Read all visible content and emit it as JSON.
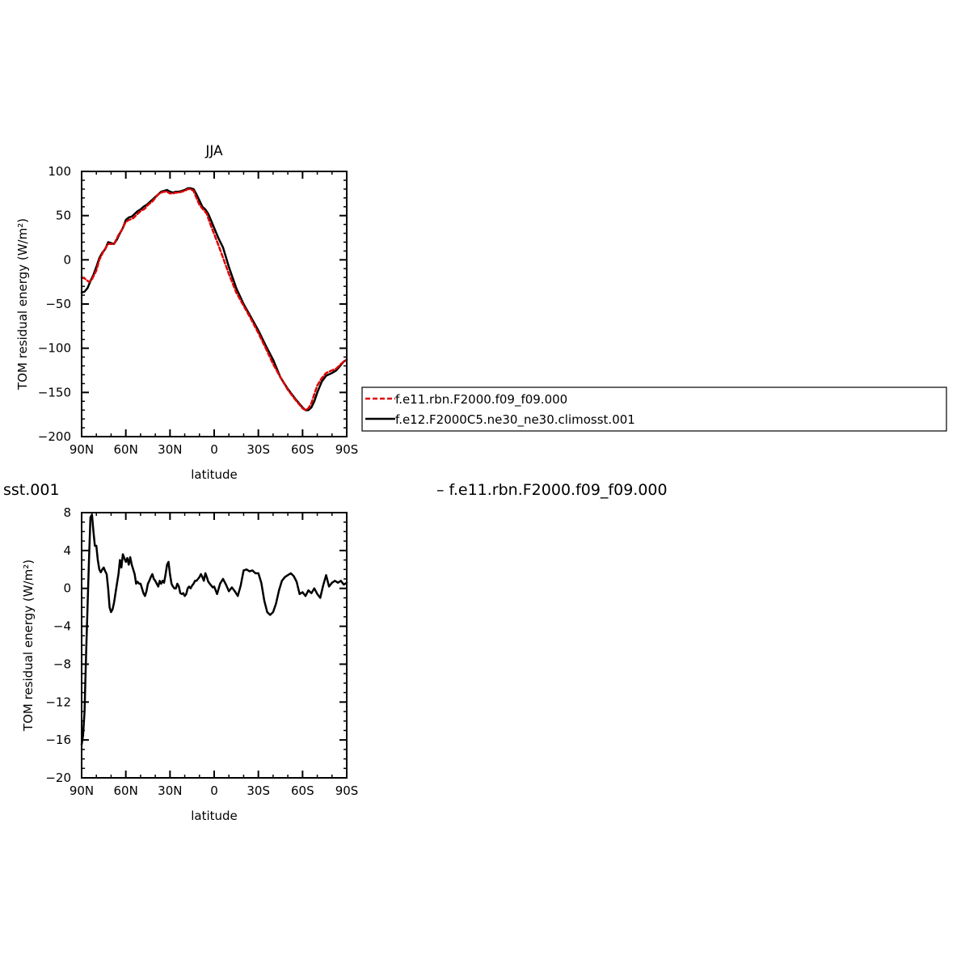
{
  "chart_data": [
    {
      "type": "line",
      "title": "JJA",
      "xlabel": "latitude",
      "ylabel": "TOM residual energy (W/m²)",
      "xlim": [
        90,
        -90
      ],
      "ylim": [
        -200,
        100
      ],
      "x_ticks": [
        90,
        60,
        30,
        0,
        -30,
        -60,
        -90
      ],
      "x_tick_labels": [
        "90N",
        "60N",
        "30N",
        "0",
        "30S",
        "60S",
        "90S"
      ],
      "y_ticks": [
        100,
        50,
        0,
        -50,
        -100,
        -150,
        -200
      ],
      "y_tick_labels": [
        "100",
        "50",
        "0",
        "−50",
        "−100",
        "−150",
        "−200"
      ],
      "legend": {
        "placement": "right",
        "entries": [
          "f.e11.rbn.F2000.f09_f09.000",
          "f.e12.F2000C5.ne30_ne30.climosst.001"
        ]
      },
      "series": [
        {
          "name": "f.e11.rbn.F2000.f09_f09.000",
          "color": "#e00000",
          "dash": true,
          "x": [
            90,
            88,
            85,
            83,
            80,
            78,
            75,
            72,
            70,
            68,
            65,
            63,
            60,
            58,
            55,
            52,
            50,
            47,
            45,
            42,
            40,
            38,
            36,
            34,
            32,
            30,
            28,
            26,
            24,
            22,
            20,
            18,
            16,
            14,
            12,
            10,
            8,
            5,
            3,
            0,
            -3,
            -5,
            -10,
            -15,
            -20,
            -25,
            -30,
            -35,
            -40,
            -45,
            -50,
            -55,
            -60,
            -62,
            -64,
            -66,
            -68,
            -70,
            -73,
            -76,
            -80,
            -83,
            -86,
            -88,
            -90
          ],
          "y": [
            -20,
            -21,
            -25,
            -22,
            -12,
            0,
            10,
            18,
            18,
            18,
            28,
            33,
            43,
            45,
            47,
            52,
            55,
            58,
            62,
            66,
            70,
            74,
            76,
            77,
            77,
            75,
            75,
            76,
            76,
            77,
            78,
            80,
            80,
            78,
            70,
            62,
            58,
            52,
            42,
            29,
            16,
            7,
            -16,
            -37,
            -52,
            -67,
            -83,
            -100,
            -118,
            -133,
            -147,
            -158,
            -168,
            -170,
            -168,
            -162,
            -152,
            -142,
            -134,
            -128,
            -125,
            -123,
            -118,
            -115,
            -113
          ]
        },
        {
          "name": "f.e12.F2000C5.ne30_ne30.climosst.001",
          "color": "#000000",
          "dash": false,
          "x": [
            90,
            88,
            86,
            84,
            82,
            80,
            78,
            76,
            74,
            72,
            70,
            68,
            66,
            64,
            62,
            60,
            58,
            56,
            54,
            52,
            50,
            48,
            46,
            44,
            42,
            40,
            38,
            36,
            34,
            32,
            30,
            28,
            26,
            24,
            22,
            20,
            18,
            16,
            14,
            12,
            10,
            8,
            6,
            4,
            2,
            0,
            -3,
            -6,
            -10,
            -15,
            -20,
            -25,
            -30,
            -35,
            -40,
            -45,
            -50,
            -55,
            -60,
            -62,
            -64,
            -66,
            -68,
            -70,
            -73,
            -76,
            -80,
            -83,
            -86,
            -88,
            -90
          ],
          "y": [
            -37,
            -36,
            -32,
            -24,
            -17,
            -8,
            2,
            8,
            12,
            20,
            19,
            18,
            23,
            30,
            36,
            45,
            48,
            49,
            52,
            55,
            57,
            60,
            62,
            65,
            68,
            71,
            74,
            77,
            78,
            79,
            77,
            76,
            77,
            77,
            78,
            79,
            81,
            81,
            80,
            74,
            67,
            60,
            57,
            52,
            44,
            36,
            24,
            14,
            -8,
            -32,
            -50,
            -65,
            -80,
            -97,
            -113,
            -133,
            -146,
            -157,
            -167,
            -170,
            -170,
            -167,
            -160,
            -150,
            -138,
            -131,
            -128,
            -125,
            -119,
            -115,
            -113
          ]
        }
      ]
    },
    {
      "type": "line",
      "title": "",
      "xlabel": "latitude",
      "ylabel": "TOM residual energy (W/m²)",
      "xlim": [
        90,
        -90
      ],
      "ylim": [
        -20,
        8
      ],
      "x_ticks": [
        90,
        60,
        30,
        0,
        -30,
        -60,
        -90
      ],
      "x_tick_labels": [
        "90N",
        "60N",
        "30N",
        "0",
        "30S",
        "60S",
        "90S"
      ],
      "y_ticks": [
        8,
        4,
        0,
        -4,
        -8,
        -12,
        -16,
        -20
      ],
      "y_tick_labels": [
        "8",
        "4",
        "0",
        "−4",
        "−8",
        "−12",
        "−16",
        "−20"
      ],
      "left_caption": "sst.001",
      "right_caption": "– f.e11.rbn.F2000.f09_f09.000",
      "series": [
        {
          "color": "#000000",
          "x": [
            90,
            89,
            88,
            87,
            86,
            85,
            84,
            83,
            82,
            81,
            80,
            79,
            78,
            77,
            76,
            75,
            74,
            73,
            72,
            71,
            70,
            69,
            68,
            67,
            66,
            65,
            64,
            63,
            62,
            61,
            60,
            59,
            58,
            57,
            56,
            55,
            54,
            53,
            52,
            51,
            50,
            49,
            48,
            47,
            46,
            45,
            44,
            43,
            42,
            41,
            40,
            39,
            38,
            37,
            36,
            35,
            34,
            33,
            32,
            31,
            30,
            29,
            28,
            27,
            26,
            25,
            24,
            23,
            22,
            21,
            20,
            19,
            18,
            17,
            16,
            15,
            14,
            13,
            12,
            11,
            10,
            9,
            8,
            7,
            6,
            5,
            4,
            3,
            2,
            1,
            0,
            -2,
            -4,
            -6,
            -8,
            -10,
            -12,
            -14,
            -16,
            -18,
            -20,
            -22,
            -24,
            -26,
            -28,
            -30,
            -32,
            -34,
            -36,
            -38,
            -40,
            -42,
            -44,
            -46,
            -48,
            -50,
            -52,
            -54,
            -56,
            -58,
            -60,
            -62,
            -64,
            -66,
            -68,
            -70,
            -72,
            -74,
            -76,
            -78,
            -80,
            -82,
            -84,
            -86,
            -88,
            -90
          ],
          "y": [
            -16.5,
            -15.5,
            -13,
            -7,
            -2,
            3,
            7.5,
            7.8,
            6,
            4.5,
            4.5,
            3,
            2,
            1.7,
            2,
            2.2,
            1.8,
            1.5,
            0,
            -2,
            -2.5,
            -2.2,
            -1.5,
            -0.5,
            0.5,
            1.5,
            3,
            2.2,
            3.6,
            3.2,
            2.8,
            3.2,
            2.5,
            3.3,
            2.5,
            2,
            1.5,
            0.5,
            0.7,
            0.5,
            0.5,
            0,
            -0.5,
            -0.8,
            -0.3,
            0.5,
            0.8,
            1.2,
            1.5,
            1,
            0.8,
            0.5,
            0.2,
            0.8,
            0.5,
            0.8,
            0.6,
            1.5,
            2.5,
            2.8,
            1.5,
            0.5,
            0.2,
            0,
            0,
            0.5,
            0.2,
            -0.5,
            -0.6,
            -0.5,
            -0.8,
            -0.6,
            0,
            0.2,
            0,
            0.3,
            0.5,
            0.8,
            0.8,
            1,
            1.2,
            1.5,
            1.2,
            0.8,
            1.6,
            1.2,
            0.7,
            0.5,
            0.3,
            0.1,
            0.2,
            -0.6,
            0.5,
            1,
            0.4,
            -0.3,
            0.1,
            -0.3,
            -0.8,
            0.3,
            1.9,
            2,
            1.8,
            1.9,
            1.6,
            1.6,
            0.6,
            -1.3,
            -2.5,
            -2.8,
            -2.5,
            -1.6,
            -0.2,
            0.8,
            1.2,
            1.4,
            1.6,
            1.3,
            0.7,
            -0.6,
            -0.4,
            -0.8,
            -0.2,
            -0.5,
            0,
            -0.6,
            -1,
            0.3,
            1.4,
            0.2,
            0.6,
            0.8,
            0.6,
            0.8,
            0.4,
            0.6
          ]
        }
      ]
    }
  ]
}
